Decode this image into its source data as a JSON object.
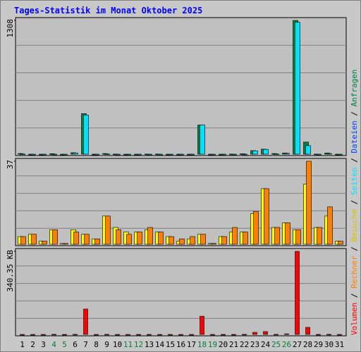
{
  "chart_data": [
    {
      "type": "bar",
      "title": "Tages-Statistik im Monat Oktober 2025",
      "ylim": [
        0,
        1308
      ],
      "yticks": [
        1308
      ],
      "series": [
        {
          "name": "Anfragen",
          "color": "#008040",
          "values": [
            20,
            10,
            10,
            18,
            10,
            28,
            406,
            10,
            20,
            15,
            10,
            10,
            15,
            15,
            10,
            10,
            10,
            296,
            10,
            10,
            15,
            18,
            48,
            62,
            20,
            25,
            1308,
            131,
            15,
            25,
            10
          ]
        },
        {
          "name": "Seiten",
          "color": "#00e0ff",
          "values": [
            15,
            8,
            8,
            14,
            8,
            25,
            392,
            8,
            16,
            12,
            8,
            8,
            12,
            12,
            8,
            8,
            8,
            296,
            8,
            8,
            10,
            14,
            46,
            60,
            16,
            22,
            1290,
            96,
            12,
            20,
            8
          ]
        }
      ],
      "legend_extra": [
        {
          "name": "Dateien",
          "color": "#0040ff"
        }
      ]
    },
    {
      "type": "bar",
      "ylim": [
        0,
        37
      ],
      "yticks": [
        37
      ],
      "series": [
        {
          "name": "Besuche",
          "color": "#ffff00",
          "values": [
            4,
            5,
            2,
            7,
            1,
            7,
            5,
            3,
            13,
            8,
            6,
            6,
            7,
            6,
            4,
            2,
            3,
            5,
            1,
            4,
            6,
            6,
            14,
            25,
            8,
            10,
            7,
            27,
            8,
            13,
            2
          ]
        },
        {
          "name": "Rechner",
          "color": "#ff8000",
          "values": [
            4,
            5,
            2,
            7,
            1,
            6,
            5,
            3,
            13,
            7,
            5,
            6,
            8,
            6,
            4,
            3,
            4,
            5,
            1,
            4,
            8,
            6,
            15,
            25,
            8,
            10,
            7,
            37,
            8,
            17,
            2
          ]
        }
      ]
    },
    {
      "type": "bar",
      "ylim": [
        0,
        340.35
      ],
      "yticks": [
        {
          "value": 340.35,
          "label": "340.35 KB"
        }
      ],
      "series": [
        {
          "name": "Volumen",
          "color": "#ff0000",
          "values": [
            4,
            3,
            3,
            6,
            3,
            6,
            108,
            3,
            6,
            4,
            3,
            3,
            4,
            4,
            3,
            3,
            3,
            79,
            3,
            3,
            4,
            6,
            14,
            17,
            6,
            8,
            340.35,
            34,
            4,
            6,
            3
          ]
        }
      ],
      "categories": [
        "1",
        "2",
        "3",
        "4",
        "5",
        "6",
        "7",
        "8",
        "9",
        "10",
        "11",
        "12",
        "13",
        "14",
        "15",
        "16",
        "17",
        "18",
        "19",
        "20",
        "21",
        "22",
        "23",
        "24",
        "25",
        "26",
        "27",
        "28",
        "29",
        "30",
        "31"
      ],
      "category_colors": [
        "#000",
        "#000",
        "#000",
        "#008040",
        "#008040",
        "#000",
        "#000",
        "#000",
        "#000",
        "#000",
        "#008040",
        "#008040",
        "#000",
        "#000",
        "#000",
        "#000",
        "#000",
        "#008040",
        "#008040",
        "#000",
        "#000",
        "#000",
        "#000",
        "#000",
        "#008040",
        "#008040",
        "#000",
        "#000",
        "#000",
        "#000",
        "#000"
      ]
    }
  ],
  "legend_separator": " / "
}
